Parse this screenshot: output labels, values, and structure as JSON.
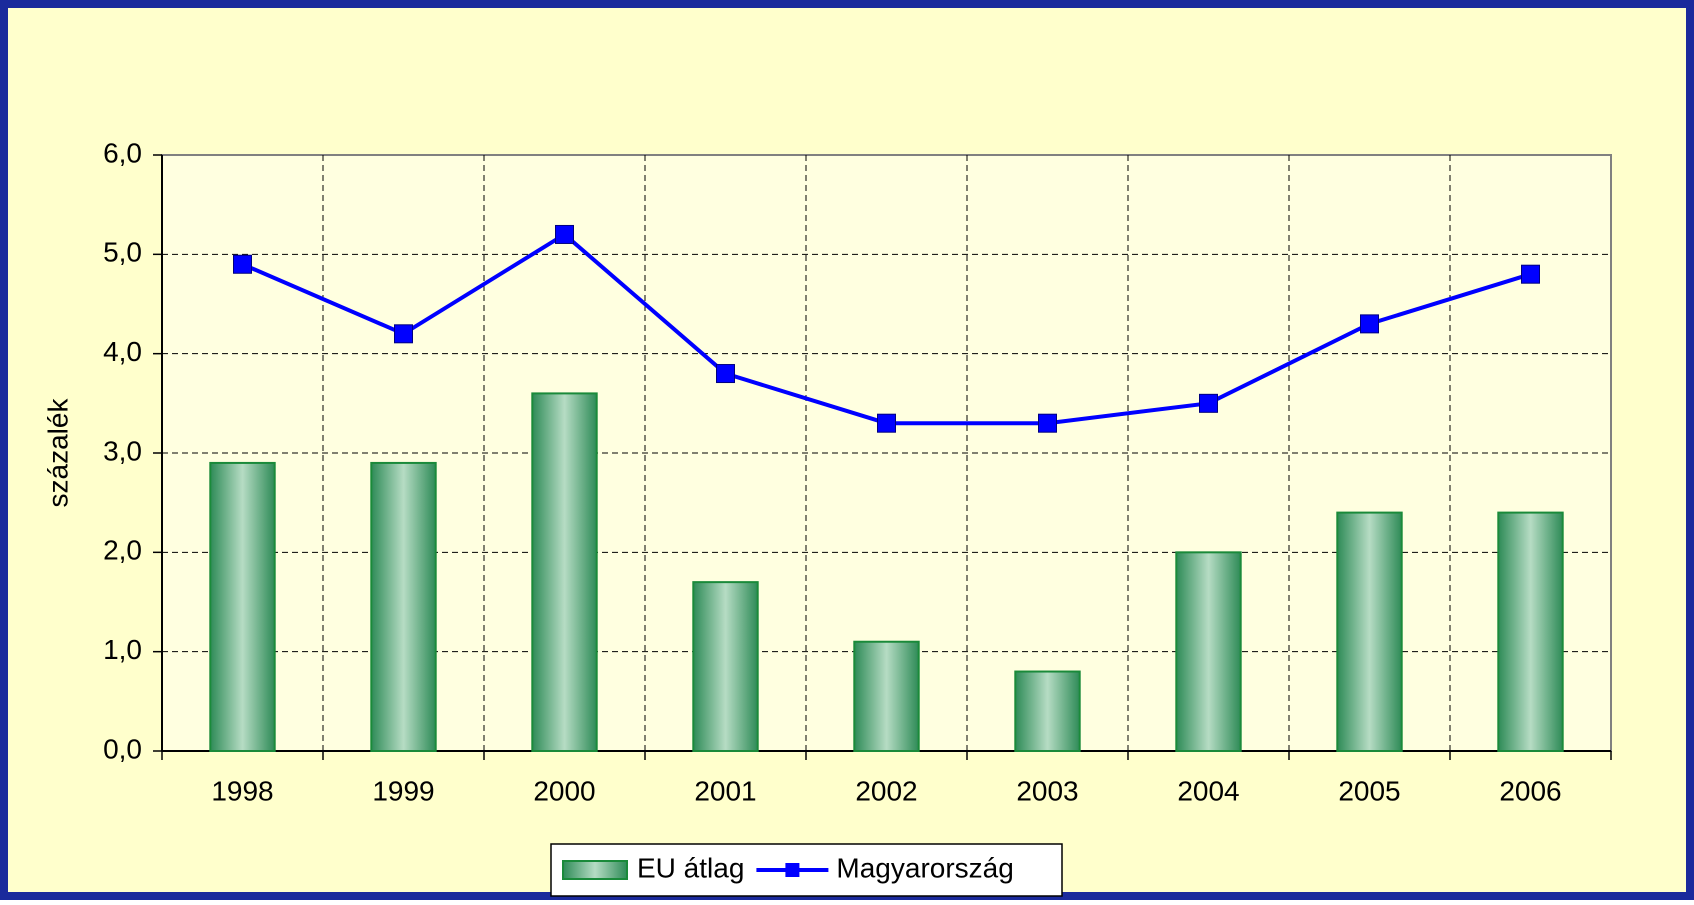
{
  "chart_data": {
    "type": "bar",
    "y_label": "százalék",
    "categories": [
      "1998",
      "1999",
      "2000",
      "2001",
      "2002",
      "2003",
      "2004",
      "2005",
      "2006"
    ],
    "series": [
      {
        "name": "EU átlag",
        "type": "bar",
        "color": "#1a8a3a",
        "values": [
          2.9,
          2.9,
          3.6,
          1.7,
          1.1,
          0.8,
          2.0,
          2.4,
          2.4
        ]
      },
      {
        "name": "Magyarország",
        "type": "line",
        "color": "#0000ff",
        "values": [
          4.9,
          4.2,
          5.2,
          3.8,
          3.3,
          3.3,
          3.5,
          4.3,
          4.8
        ]
      }
    ],
    "ylim": [
      0,
      6
    ],
    "yticks": [
      {
        "value": 0,
        "label": "0,0"
      },
      {
        "value": 1,
        "label": "1,0"
      },
      {
        "value": 2,
        "label": "2,0"
      },
      {
        "value": 3,
        "label": "3,0"
      },
      {
        "value": 4,
        "label": "4,0"
      },
      {
        "value": 5,
        "label": "5,0"
      },
      {
        "value": 6,
        "label": "6,0"
      }
    ],
    "grid": true,
    "legend": "bottom"
  }
}
